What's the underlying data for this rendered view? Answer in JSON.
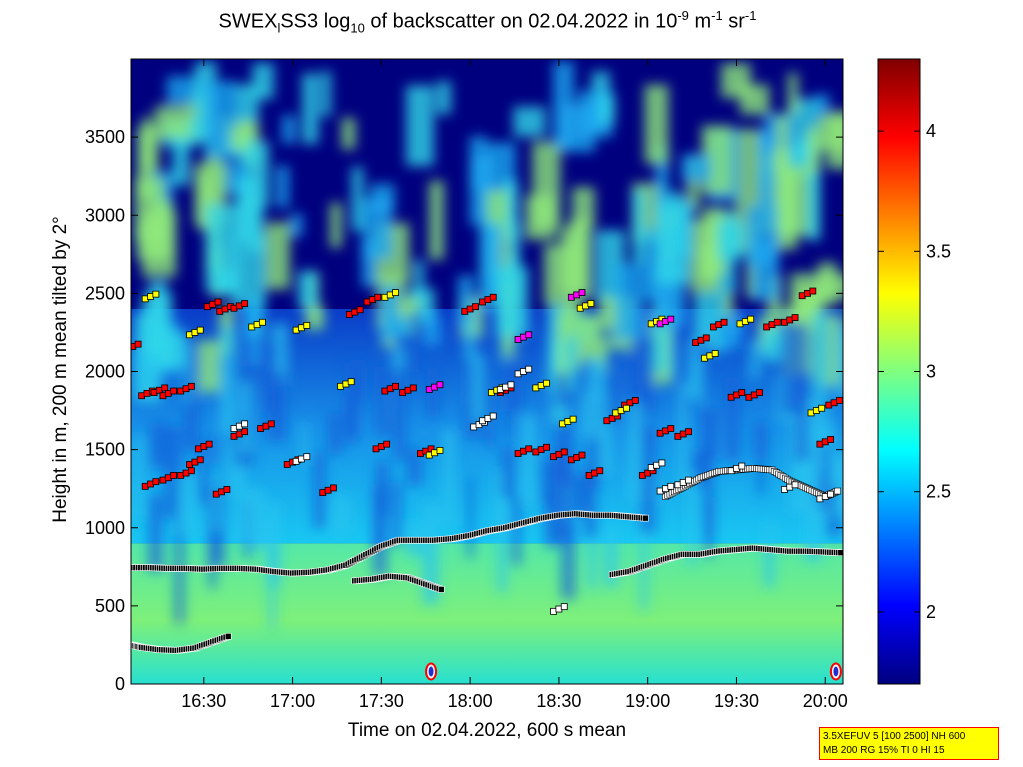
{
  "chart_data": {
    "type": "heatmap",
    "title": {
      "prefix": "SWEX",
      "sub_l": "l",
      "mid": "SS3 log",
      "sub_10": "10",
      "rest": " of backscatter on 02.04.2022 in 10",
      "sup_m9": "-9",
      "units_m": " m",
      "sup_m1a": "-1",
      "units_sr": " sr",
      "sup_m1b": "-1"
    },
    "xlabel": "Time on 02.04.2022, 600 s mean",
    "ylabel": "Height in m, 200 m mean tilted by 2°",
    "x_ticks": [
      "16:30",
      "17:00",
      "17:30",
      "18:00",
      "18:30",
      "19:00",
      "19:30",
      "20:00"
    ],
    "x_tick_hours": [
      16.5,
      17.0,
      17.5,
      18.0,
      18.5,
      19.0,
      19.5,
      20.0
    ],
    "xlim_hours": [
      16.09,
      20.1
    ],
    "y_ticks": [
      0,
      500,
      1000,
      1500,
      2000,
      2500,
      3000,
      3500
    ],
    "ylim": [
      0,
      4000
    ],
    "colorbar": {
      "ticks": [
        "2",
        "2.5",
        "3",
        "3.5",
        "4"
      ],
      "tick_values": [
        2,
        2.5,
        3,
        3.5,
        4
      ],
      "range": [
        1.7,
        4.3
      ]
    },
    "colors": {
      "low": "#00007f",
      "background_band": "#00bfff",
      "high": "#7f0000"
    },
    "layers": [
      {
        "name_hidden": true,
        "color": "#000000",
        "h": [
          16.09,
          16.2,
          16.3,
          16.4,
          16.5,
          16.6,
          16.7,
          16.8,
          16.9,
          17.0,
          17.1,
          17.2,
          17.3,
          17.4,
          17.5,
          17.6,
          17.7,
          17.8,
          17.9,
          18.0,
          18.1,
          18.2,
          18.3,
          18.4,
          18.5,
          18.6,
          18.7,
          18.8,
          18.9,
          19.0,
          19.1,
          19.2,
          19.3,
          19.4,
          19.5,
          19.6,
          19.7,
          19.8,
          19.9,
          20.0,
          20.1
        ],
        "z": [
          745,
          745,
          740,
          740,
          735,
          740,
          740,
          735,
          720,
          710,
          715,
          730,
          760,
          820,
          880,
          920,
          920,
          920,
          930,
          950,
          980,
          1000,
          1030,
          1060,
          1080,
          1090,
          1080,
          1080,
          1070,
          1060,
          null,
          null,
          null,
          null,
          null,
          null,
          null,
          null,
          null,
          null,
          null
        ]
      },
      {
        "name_hidden": true,
        "color": "#000000",
        "h": [
          17.3,
          17.4,
          17.5,
          17.6,
          17.7,
          17.8,
          17.9,
          18.0,
          18.1,
          18.2,
          18.3,
          18.4,
          18.5,
          18.6,
          18.7,
          18.8,
          18.9,
          19.0,
          19.1,
          19.2,
          19.3,
          19.4,
          19.5,
          19.6,
          19.7,
          19.8,
          19.9,
          20.0,
          20.1
        ],
        "z": [
          null,
          null,
          null,
          null,
          null,
          null,
          null,
          null,
          null,
          null,
          null,
          null,
          null,
          null,
          null,
          700,
          720,
          760,
          800,
          830,
          830,
          850,
          860,
          870,
          860,
          850,
          850,
          845,
          840
        ]
      },
      {
        "name_hidden": true,
        "color": "#000000",
        "h": [
          17.35,
          17.45,
          17.55,
          17.65,
          17.75,
          17.85
        ],
        "z": [
          660,
          670,
          690,
          680,
          640,
          600
        ]
      },
      {
        "name_hidden": true,
        "color": "#000000",
        "h": [
          16.09,
          16.15,
          16.25,
          16.35,
          16.45,
          16.55,
          16.65
        ],
        "z": [
          250,
          235,
          220,
          215,
          230,
          270,
          310
        ]
      },
      {
        "name_hidden": true,
        "color": "#ffffff",
        "h": [
          19.1,
          19.2,
          19.3,
          19.4,
          19.5,
          19.6,
          19.7,
          19.8,
          19.9,
          20.0,
          20.08
        ],
        "z": [
          1200,
          1260,
          1320,
          1360,
          1370,
          1380,
          1370,
          1300,
          1250,
          1200,
          1240
        ]
      }
    ],
    "clouds_red": [
      [
        16.1,
        2160
      ],
      [
        16.18,
        1860
      ],
      [
        16.25,
        1880
      ],
      [
        16.3,
        1860
      ],
      [
        16.4,
        1890
      ],
      [
        16.55,
        2430
      ],
      [
        16.62,
        2400
      ],
      [
        16.7,
        2420
      ],
      [
        16.2,
        1280
      ],
      [
        16.3,
        1320
      ],
      [
        16.4,
        1350
      ],
      [
        16.45,
        1420
      ],
      [
        16.5,
        1520
      ],
      [
        16.6,
        1230
      ],
      [
        16.7,
        1600
      ],
      [
        16.85,
        1650
      ],
      [
        17.0,
        1420
      ],
      [
        17.2,
        1240
      ],
      [
        17.35,
        2380
      ],
      [
        17.45,
        2460
      ],
      [
        17.5,
        1520
      ],
      [
        17.55,
        1890
      ],
      [
        17.65,
        1880
      ],
      [
        17.75,
        1490
      ],
      [
        18.0,
        2400
      ],
      [
        18.1,
        2460
      ],
      [
        18.2,
        1880
      ],
      [
        18.3,
        1490
      ],
      [
        18.4,
        1500
      ],
      [
        18.5,
        1470
      ],
      [
        18.6,
        1450
      ],
      [
        18.7,
        1350
      ],
      [
        18.8,
        1700
      ],
      [
        18.9,
        1800
      ],
      [
        19.0,
        1350
      ],
      [
        19.1,
        1620
      ],
      [
        19.2,
        1600
      ],
      [
        19.3,
        2200
      ],
      [
        19.4,
        2300
      ],
      [
        19.5,
        1850
      ],
      [
        19.6,
        1850
      ],
      [
        19.7,
        2300
      ],
      [
        19.8,
        2330
      ],
      [
        19.9,
        2500
      ],
      [
        20.0,
        1550
      ],
      [
        20.05,
        1800
      ]
    ],
    "clouds_yellow": [
      [
        16.2,
        2480
      ],
      [
        16.45,
        2250
      ],
      [
        16.8,
        2300
      ],
      [
        17.05,
        2280
      ],
      [
        17.3,
        1920
      ],
      [
        17.55,
        2490
      ],
      [
        17.8,
        1480
      ],
      [
        18.15,
        1880
      ],
      [
        18.4,
        1910
      ],
      [
        18.55,
        1680
      ],
      [
        18.65,
        2420
      ],
      [
        18.85,
        1750
      ],
      [
        19.05,
        2320
      ],
      [
        19.35,
        2100
      ],
      [
        19.55,
        2320
      ],
      [
        19.95,
        1750
      ]
    ],
    "clouds_white": [
      [
        16.7,
        1650
      ],
      [
        17.05,
        1440
      ],
      [
        18.05,
        1660
      ],
      [
        18.1,
        1700
      ],
      [
        18.2,
        1900
      ],
      [
        18.3,
        2000
      ],
      [
        19.1,
        1250
      ],
      [
        19.2,
        1290
      ],
      [
        19.5,
        1380
      ],
      [
        19.8,
        1260
      ],
      [
        20.0,
        1200
      ],
      [
        18.5,
        480
      ],
      [
        19.05,
        1400
      ]
    ],
    "clouds_magenta": [
      [
        17.8,
        1900
      ],
      [
        18.3,
        2220
      ],
      [
        18.6,
        2490
      ],
      [
        19.1,
        2320
      ]
    ],
    "ground_markers_hours": [
      17.78,
      20.06
    ],
    "info_box": {
      "line1": "3.5XEFUV 5 [100 2500] NH 600",
      "line2": "MB 200 RG 15% TI 0 HI 15"
    }
  }
}
